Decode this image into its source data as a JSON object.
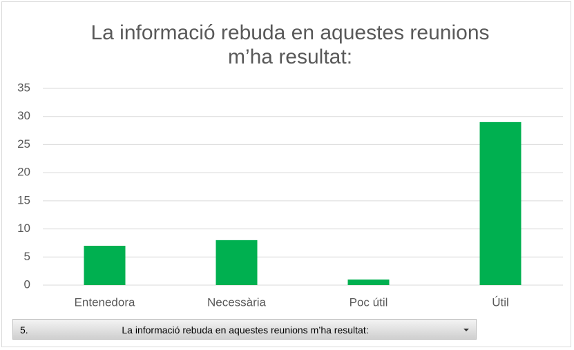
{
  "chart_data": {
    "type": "bar",
    "title": "La informació rebuda en aquestes reunions m’ha resultat:",
    "categories": [
      "Entenedora",
      "Necessària",
      "Poc útil",
      "Útil"
    ],
    "values": [
      7,
      8,
      1,
      29
    ],
    "color": "#00b050",
    "ylim": [
      0,
      35
    ],
    "yticks": [
      0,
      5,
      10,
      15,
      20,
      25,
      30,
      35
    ],
    "grid": true
  },
  "filter": {
    "number": "5.",
    "label": "La informació rebuda en aquestes reunions m’ha resultat:"
  }
}
